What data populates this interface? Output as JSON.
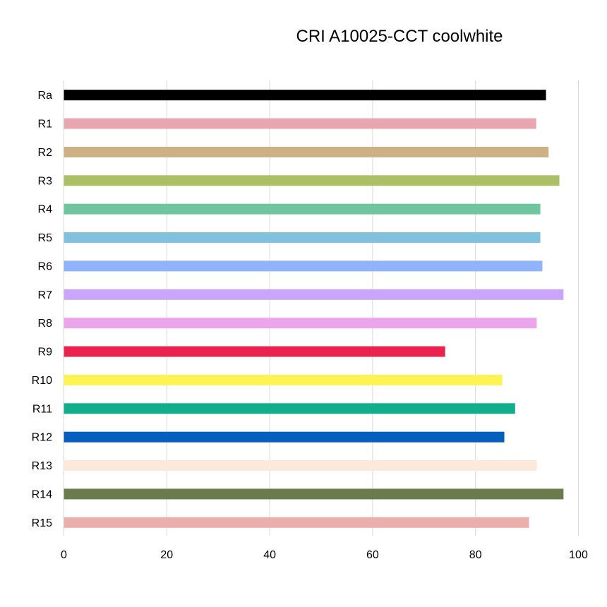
{
  "chart_data": {
    "type": "bar",
    "orientation": "horizontal",
    "title": "CRI A10025-CCT coolwhite",
    "xlabel": "",
    "ylabel": "",
    "xlim": [
      0,
      100
    ],
    "xticks": [
      0,
      20,
      40,
      60,
      80,
      100
    ],
    "grid": true,
    "legend": "none",
    "categories": [
      "Ra",
      "R1",
      "R2",
      "R3",
      "R4",
      "R5",
      "R6",
      "R7",
      "R8",
      "R9",
      "R10",
      "R11",
      "R12",
      "R13",
      "R14",
      "R15"
    ],
    "values": [
      93.7,
      91.8,
      94.2,
      96.3,
      92.6,
      92.6,
      93.0,
      97.1,
      91.9,
      74.1,
      85.2,
      87.7,
      85.6,
      91.9,
      97.1,
      90.4
    ],
    "colors": [
      "#000000",
      "#e8a6b0",
      "#cdb184",
      "#abc064",
      "#6fc69e",
      "#80c1de",
      "#8fb4fa",
      "#caa6fa",
      "#eba6eb",
      "#e9234c",
      "#fdf454",
      "#10ae8a",
      "#045fbe",
      "#fde8dc",
      "#6a7b4c",
      "#ebafab"
    ]
  }
}
